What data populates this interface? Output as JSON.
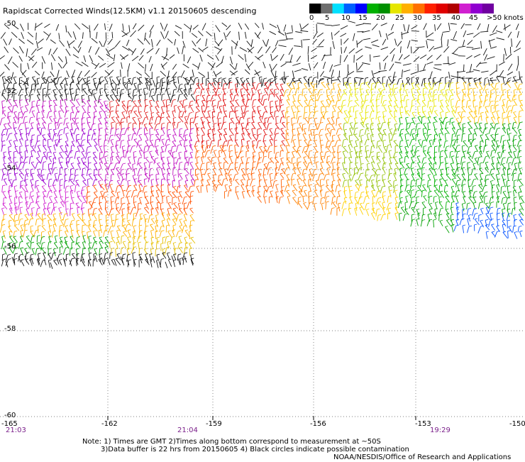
{
  "title": "Rapidscat Corrected Winds(12.5KM) v1.1 20150605 descending",
  "legend": {
    "labels": [
      "0",
      "5",
      "10",
      "15",
      "20",
      "25",
      "30",
      "35",
      "40",
      "45",
      ">50 knots"
    ],
    "colors": [
      "#000000",
      "#6e6e6e",
      "#00e0ff",
      "#0060ff",
      "#0000ff",
      "#00b000",
      "#009000",
      "#e6e600",
      "#ffb000",
      "#ff7000",
      "#ff2000",
      "#e00000",
      "#b00000",
      "#d020d0",
      "#9000d0",
      "#7000a0"
    ]
  },
  "lat_labels": [
    "-50",
    "-52",
    "-54",
    "-56",
    "-58",
    "-60"
  ],
  "lon_labels": [
    "-165",
    "-162",
    "-159",
    "-156",
    "-153",
    "-150"
  ],
  "times": [
    "21:03",
    "21:04",
    "19:29"
  ],
  "notes": {
    "line1": "Note: 1) Times are GMT 2)Times along bottom correspond to measurement at ~50S",
    "line2": "3)Data buffer is 22 hrs from 20150605 4) Black circles indicate possible contamination",
    "credit": "NOAA/NESDIS/Office of Research and Applications"
  }
}
